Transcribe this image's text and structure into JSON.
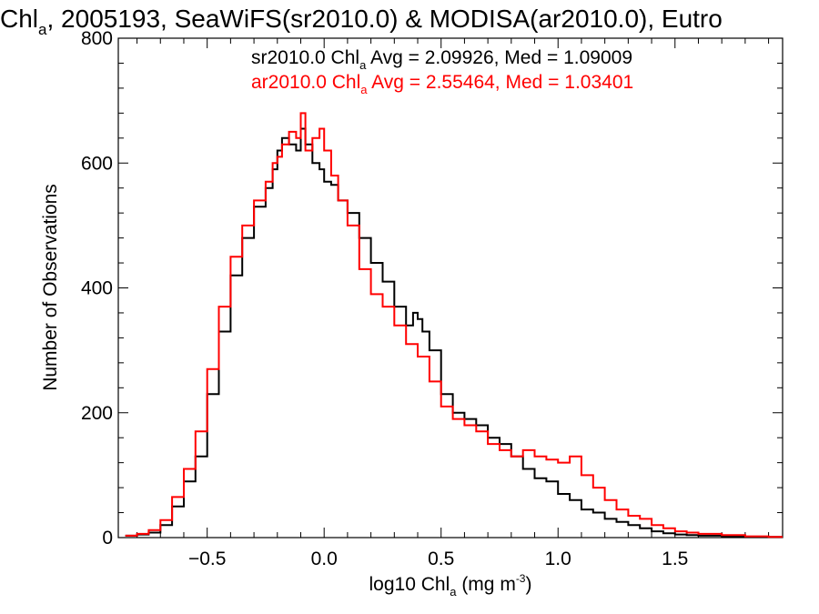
{
  "chart_data": {
    "type": "line",
    "title_parts": {
      "pre": "Chl",
      "sub": "a",
      "post": ", 2005193, SeaWiFS(sr2010.0) & MODISA(ar2010.0), Eutro"
    },
    "xlabel_parts": {
      "pre": "log10 Chl",
      "sub": "a",
      "mid": " (mg m",
      "sup": "-3",
      "post": ")"
    },
    "ylabel": "Number of Observations",
    "xlim": [
      -0.88,
      1.96
    ],
    "ylim": [
      0,
      800
    ],
    "xticks": [
      -0.5,
      0.0,
      0.5,
      1.0,
      1.5
    ],
    "xtick_labels": [
      "−0.5",
      "0.0",
      "0.5",
      "1.0",
      "1.5"
    ],
    "yticks": [
      0,
      200,
      400,
      600,
      800
    ],
    "ytick_labels": [
      "0",
      "200",
      "400",
      "600",
      "800"
    ],
    "legend": [
      {
        "pre": "sr2010.0 Chl",
        "sub": "a",
        "post": " Avg = 2.09926, Med = 1.09009",
        "color": "#000000"
      },
      {
        "pre": "ar2010.0 Chl",
        "sub": "a",
        "post": " Avg = 2.55464, Med = 1.03401",
        "color": "#ff0000"
      }
    ],
    "series": [
      {
        "color": "#000000",
        "x": [
          -0.85,
          -0.8,
          -0.75,
          -0.7,
          -0.65,
          -0.6,
          -0.55,
          -0.5,
          -0.45,
          -0.4,
          -0.35,
          -0.3,
          -0.25,
          -0.22,
          -0.2,
          -0.18,
          -0.15,
          -0.12,
          -0.1,
          -0.08,
          -0.05,
          -0.02,
          0.0,
          0.03,
          0.06,
          0.1,
          0.15,
          0.2,
          0.25,
          0.3,
          0.35,
          0.38,
          0.4,
          0.42,
          0.45,
          0.5,
          0.55,
          0.6,
          0.65,
          0.7,
          0.75,
          0.8,
          0.85,
          0.9,
          0.95,
          1.0,
          1.05,
          1.1,
          1.15,
          1.2,
          1.25,
          1.3,
          1.35,
          1.4,
          1.45,
          1.5,
          1.55,
          1.6,
          1.7,
          1.8,
          1.9,
          1.96
        ],
        "y": [
          3,
          5,
          8,
          20,
          50,
          90,
          130,
          230,
          330,
          420,
          480,
          530,
          560,
          590,
          620,
          640,
          630,
          620,
          655,
          630,
          600,
          590,
          570,
          565,
          540,
          520,
          480,
          440,
          410,
          370,
          340,
          360,
          350,
          330,
          300,
          230,
          200,
          190,
          180,
          160,
          150,
          130,
          110,
          95,
          90,
          70,
          60,
          45,
          40,
          30,
          25,
          20,
          15,
          10,
          7,
          5,
          4,
          3,
          2,
          1,
          1,
          1
        ]
      },
      {
        "color": "#ff0000",
        "x": [
          -0.85,
          -0.8,
          -0.75,
          -0.7,
          -0.65,
          -0.6,
          -0.55,
          -0.5,
          -0.45,
          -0.4,
          -0.35,
          -0.3,
          -0.25,
          -0.22,
          -0.2,
          -0.18,
          -0.15,
          -0.12,
          -0.1,
          -0.08,
          -0.05,
          -0.02,
          0.0,
          0.03,
          0.06,
          0.1,
          0.15,
          0.2,
          0.25,
          0.3,
          0.35,
          0.4,
          0.45,
          0.5,
          0.55,
          0.6,
          0.65,
          0.7,
          0.75,
          0.8,
          0.85,
          0.9,
          0.95,
          1.0,
          1.05,
          1.1,
          1.15,
          1.2,
          1.25,
          1.3,
          1.35,
          1.4,
          1.45,
          1.5,
          1.55,
          1.6,
          1.7,
          1.8,
          1.9,
          1.96
        ],
        "y": [
          3,
          6,
          12,
          28,
          65,
          110,
          170,
          270,
          370,
          450,
          500,
          540,
          570,
          600,
          610,
          630,
          650,
          640,
          680,
          620,
          640,
          655,
          620,
          580,
          540,
          500,
          430,
          390,
          370,
          340,
          310,
          290,
          250,
          210,
          190,
          180,
          170,
          150,
          140,
          130,
          140,
          130,
          125,
          120,
          130,
          100,
          80,
          60,
          45,
          35,
          30,
          20,
          15,
          10,
          8,
          6,
          4,
          2,
          1,
          1
        ]
      }
    ]
  }
}
